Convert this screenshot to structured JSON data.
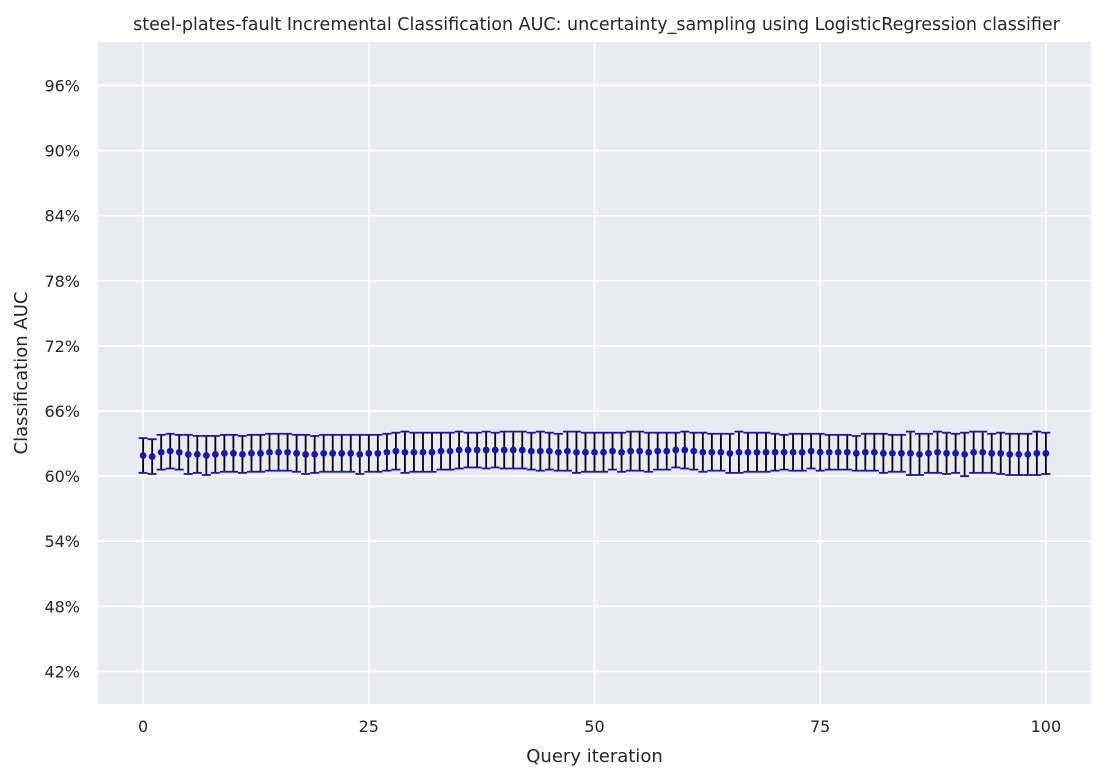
{
  "chart_data": {
    "type": "scatter",
    "title": "steel-plates-fault Incremental Classification AUC: uncertainty_sampling using LogisticRegression classifier",
    "xlabel": "Query iteration",
    "ylabel": "Classification AUC",
    "xlim": [
      -5,
      105
    ],
    "ylim": [
      0.39,
      1.0
    ],
    "xticks": [
      0,
      25,
      50,
      75,
      100
    ],
    "xtick_labels": [
      "0",
      "25",
      "50",
      "75",
      "100"
    ],
    "yticks": [
      0.42,
      0.48,
      0.54,
      0.6,
      0.66,
      0.72,
      0.78,
      0.84,
      0.9,
      0.96
    ],
    "ytick_labels": [
      "42%",
      "48%",
      "54%",
      "60%",
      "66%",
      "72%",
      "78%",
      "84%",
      "90%",
      "96%"
    ],
    "grid": true,
    "background_color": "#eaeaf2",
    "marker_color": "#1616b4",
    "errorbar_color": "#000000",
    "cap_color": "#1616b4",
    "series": [
      {
        "x": [
          0,
          1,
          2,
          3,
          4,
          5,
          6,
          7,
          8,
          9,
          10,
          11,
          12,
          13,
          14,
          15,
          16,
          17,
          18,
          19,
          20,
          21,
          22,
          23,
          24,
          25,
          26,
          27,
          28,
          29,
          30,
          31,
          32,
          33,
          34,
          35,
          36,
          37,
          38,
          39,
          40,
          41,
          42,
          43,
          44,
          45,
          46,
          47,
          48,
          49,
          50,
          51,
          52,
          53,
          54,
          55,
          56,
          57,
          58,
          59,
          60,
          61,
          62,
          63,
          64,
          65,
          66,
          67,
          68,
          69,
          70,
          71,
          72,
          73,
          74,
          75,
          76,
          77,
          78,
          79,
          80,
          81,
          82,
          83,
          84,
          85,
          86,
          87,
          88,
          89,
          90,
          91,
          92,
          93,
          94,
          95,
          96,
          97,
          98,
          99,
          100
        ],
        "y": [
          0.619,
          0.618,
          0.622,
          0.623,
          0.622,
          0.62,
          0.62,
          0.619,
          0.62,
          0.621,
          0.621,
          0.62,
          0.621,
          0.621,
          0.622,
          0.622,
          0.622,
          0.621,
          0.62,
          0.62,
          0.621,
          0.621,
          0.621,
          0.621,
          0.62,
          0.621,
          0.621,
          0.622,
          0.623,
          0.622,
          0.622,
          0.622,
          0.622,
          0.623,
          0.623,
          0.624,
          0.624,
          0.624,
          0.624,
          0.624,
          0.624,
          0.624,
          0.624,
          0.623,
          0.623,
          0.623,
          0.622,
          0.623,
          0.622,
          0.622,
          0.622,
          0.622,
          0.623,
          0.622,
          0.623,
          0.623,
          0.622,
          0.623,
          0.623,
          0.624,
          0.624,
          0.623,
          0.622,
          0.622,
          0.622,
          0.621,
          0.622,
          0.622,
          0.622,
          0.622,
          0.622,
          0.622,
          0.622,
          0.622,
          0.623,
          0.622,
          0.622,
          0.622,
          0.622,
          0.621,
          0.622,
          0.622,
          0.621,
          0.621,
          0.621,
          0.621,
          0.62,
          0.621,
          0.622,
          0.621,
          0.621,
          0.62,
          0.622,
          0.622,
          0.621,
          0.621,
          0.62,
          0.62,
          0.62,
          0.621,
          0.621
        ],
        "err": [
          0.016,
          0.016,
          0.016,
          0.016,
          0.016,
          0.018,
          0.017,
          0.018,
          0.017,
          0.017,
          0.017,
          0.017,
          0.017,
          0.017,
          0.017,
          0.017,
          0.017,
          0.017,
          0.018,
          0.017,
          0.017,
          0.017,
          0.017,
          0.017,
          0.018,
          0.017,
          0.017,
          0.017,
          0.017,
          0.019,
          0.018,
          0.018,
          0.018,
          0.017,
          0.017,
          0.017,
          0.016,
          0.016,
          0.017,
          0.016,
          0.017,
          0.017,
          0.017,
          0.017,
          0.018,
          0.017,
          0.017,
          0.018,
          0.019,
          0.018,
          0.018,
          0.018,
          0.017,
          0.018,
          0.018,
          0.018,
          0.018,
          0.017,
          0.017,
          0.016,
          0.017,
          0.017,
          0.018,
          0.017,
          0.017,
          0.018,
          0.019,
          0.018,
          0.018,
          0.018,
          0.017,
          0.016,
          0.017,
          0.017,
          0.016,
          0.017,
          0.016,
          0.016,
          0.016,
          0.016,
          0.017,
          0.017,
          0.018,
          0.017,
          0.017,
          0.02,
          0.019,
          0.018,
          0.019,
          0.019,
          0.018,
          0.02,
          0.019,
          0.019,
          0.018,
          0.019,
          0.019,
          0.019,
          0.019,
          0.02,
          0.019
        ]
      }
    ]
  }
}
